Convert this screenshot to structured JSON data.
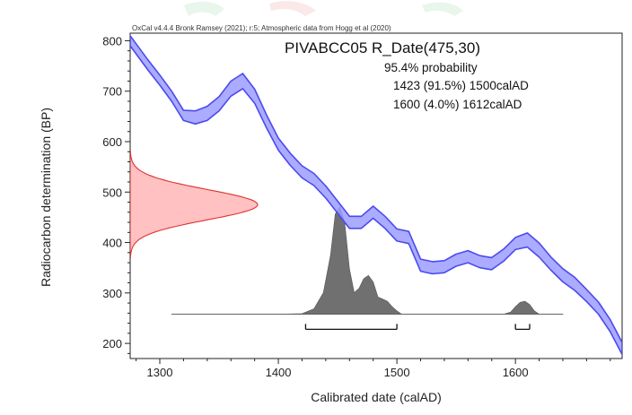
{
  "chart_data": {
    "type": "area",
    "credit": "OxCal v4.4.4 Bronk Ramsey (2021); r:5; Atmospheric data from Hogg et al (2020)",
    "title": "PIVABCC05 R_Date(475,30)",
    "annotations": {
      "probability_heading": "95.4% probability",
      "ranges": [
        {
          "text": "1423 (91.5%) 1500calAD",
          "from": 1423,
          "to": 1500,
          "percent": 91.5
        },
        {
          "text": "1600 (4.0%) 1612calAD",
          "from": 1600,
          "to": 1612,
          "percent": 4.0
        }
      ]
    },
    "xlabel": "Calibrated date (calAD)",
    "ylabel": "Radiocarbon determination (BP)",
    "xlim": [
      1275,
      1690
    ],
    "ylim": [
      170,
      815
    ],
    "x_ticks": [
      1300,
      1400,
      1500,
      1600
    ],
    "y_ticks": [
      200,
      300,
      400,
      500,
      600,
      700,
      800
    ],
    "colors": {
      "calibration_curve": "#4a4af0",
      "calibration_fill": "#9c9cff",
      "measurement": "#e03030",
      "measurement_fill": "#ffb6b6",
      "posterior_fill": "#707070"
    },
    "calibration_curve": {
      "x": [
        1275,
        1290,
        1300,
        1310,
        1320,
        1330,
        1340,
        1350,
        1360,
        1370,
        1380,
        1390,
        1400,
        1410,
        1420,
        1430,
        1440,
        1450,
        1460,
        1470,
        1480,
        1490,
        1500,
        1510,
        1520,
        1530,
        1540,
        1550,
        1560,
        1570,
        1580,
        1590,
        1600,
        1610,
        1620,
        1630,
        1640,
        1650,
        1660,
        1670,
        1680,
        1690
      ],
      "mean": [
        800,
        752,
        722,
        690,
        652,
        648,
        656,
        675,
        705,
        720,
        690,
        640,
        595,
        565,
        540,
        525,
        500,
        470,
        440,
        440,
        460,
        440,
        415,
        410,
        355,
        350,
        352,
        365,
        372,
        362,
        358,
        375,
        398,
        405,
        385,
        358,
        335,
        318,
        295,
        270,
        235,
        190
      ],
      "sigma": [
        10,
        10,
        10,
        10,
        10,
        13,
        14,
        14,
        15,
        15,
        14,
        13,
        12,
        12,
        12,
        12,
        12,
        12,
        12,
        12,
        12,
        12,
        12,
        12,
        12,
        12,
        12,
        12,
        12,
        12,
        12,
        12,
        12,
        14,
        14,
        13,
        13,
        13,
        12,
        12,
        12,
        12
      ]
    },
    "measurement": {
      "mean": 475,
      "sigma": 30
    },
    "posterior": {
      "x": [
        1310,
        1400,
        1420,
        1430,
        1438,
        1444,
        1448,
        1452,
        1456,
        1460,
        1464,
        1468,
        1472,
        1476,
        1480,
        1484,
        1488,
        1492,
        1496,
        1500,
        1504,
        1590,
        1596,
        1600,
        1604,
        1608,
        1612,
        1616,
        1620,
        1630,
        1640
      ],
      "density": [
        0,
        0,
        0.005,
        0.05,
        0.2,
        0.55,
        0.93,
        1.0,
        0.85,
        0.42,
        0.2,
        0.24,
        0.33,
        0.36,
        0.3,
        0.16,
        0.14,
        0.12,
        0.07,
        0.03,
        0,
        0,
        0.02,
        0.07,
        0.11,
        0.12,
        0.09,
        0.03,
        0,
        0,
        0
      ]
    }
  }
}
